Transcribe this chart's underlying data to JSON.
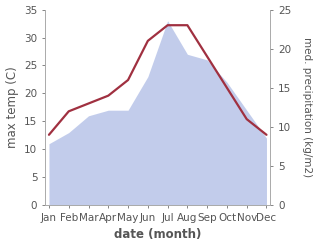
{
  "months": [
    "Jan",
    "Feb",
    "Mar",
    "Apr",
    "May",
    "Jun",
    "Jul",
    "Aug",
    "Sep",
    "Oct",
    "Nov",
    "Dec"
  ],
  "month_positions": [
    0,
    1,
    2,
    3,
    4,
    5,
    6,
    7,
    8,
    9,
    10,
    11
  ],
  "temperature": [
    11.0,
    13.0,
    16.0,
    17.0,
    17.0,
    23.0,
    33.0,
    27.0,
    26.0,
    22.0,
    17.0,
    12.0
  ],
  "precipitation": [
    9.0,
    12.0,
    13.0,
    14.0,
    16.0,
    21.0,
    23.0,
    23.0,
    19.0,
    15.0,
    11.0,
    9.0
  ],
  "temp_fill_color": "#b8c4e8",
  "precip_color": "#a03040",
  "temp_ylim": [
    0,
    35
  ],
  "precip_ylim": [
    0,
    25
  ],
  "temp_yticks": [
    0,
    5,
    10,
    15,
    20,
    25,
    30,
    35
  ],
  "precip_yticks": [
    0,
    5,
    10,
    15,
    20,
    25
  ],
  "xlabel": "date (month)",
  "ylabel_left": "max temp (C)",
  "ylabel_right": "med. precipitation (kg/m2)",
  "bg_color": "#ffffff",
  "label_fontsize": 8.5,
  "tick_fontsize": 7.5,
  "axis_color": "#555555"
}
